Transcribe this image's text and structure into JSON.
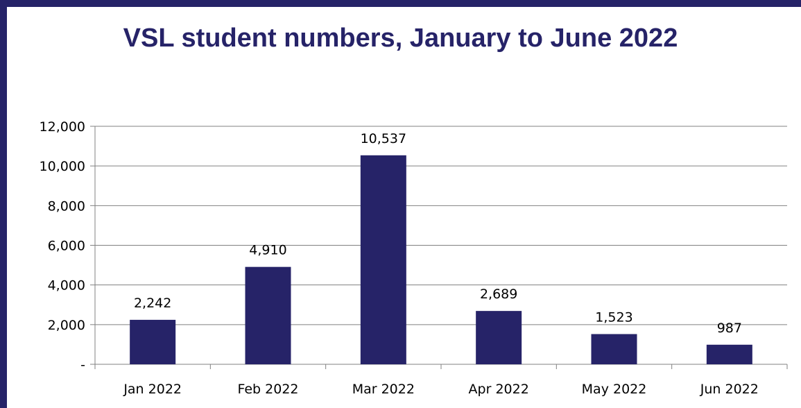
{
  "chart_data": {
    "type": "bar",
    "title": "VSL student numbers, January to June 2022",
    "categories": [
      "Jan 2022",
      "Feb 2022",
      "Mar 2022",
      "Apr 2022",
      "May 2022",
      "Jun 2022"
    ],
    "values": [
      2242,
      4910,
      10537,
      2689,
      1523,
      987
    ],
    "value_labels": [
      "2,242",
      "4,910",
      "10,537",
      "2,689",
      "1,523",
      "987"
    ],
    "ylim": [
      0,
      12000
    ],
    "yticks": [
      0,
      2000,
      4000,
      6000,
      8000,
      10000,
      12000
    ],
    "ytick_labels": [
      "-",
      "2,000",
      "4,000",
      "6,000",
      "8,000",
      "10,000",
      "12,000"
    ],
    "xlabel": "",
    "ylabel": "",
    "grid": true,
    "legend": "none",
    "bar_color": "#262368",
    "grid_color": "#808080"
  }
}
